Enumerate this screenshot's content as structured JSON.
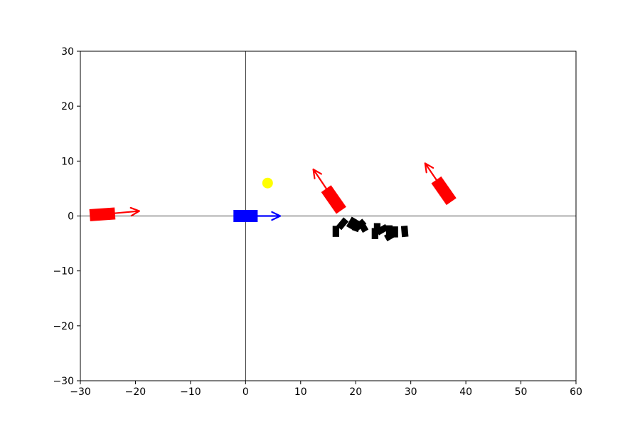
{
  "chart_data": {
    "type": "scatter",
    "title": "",
    "xlabel": "",
    "ylabel": "",
    "xlim": [
      -30,
      60
    ],
    "ylim": [
      -30,
      30
    ],
    "xticks": [
      -30,
      -20,
      -10,
      0,
      10,
      20,
      30,
      40,
      50,
      60
    ],
    "yticks": [
      -30,
      -20,
      -10,
      0,
      10,
      20,
      30
    ],
    "xtick_labels": [
      "−30",
      "−20",
      "−10",
      "0",
      "10",
      "20",
      "30",
      "40",
      "50",
      "60"
    ],
    "ytick_labels": [
      "−30",
      "−20",
      "−10",
      "0",
      "10",
      "20",
      "30"
    ],
    "reference_lines": {
      "x": 0,
      "y": 0
    },
    "grid": false,
    "own_vessel": {
      "x": 0,
      "y": 0,
      "heading_deg": 0,
      "length": 4.4,
      "width": 2.2,
      "arrow_end": [
        6.3,
        0
      ],
      "color": "#0000ff"
    },
    "target_vessels": [
      {
        "x": -26,
        "y": 0.3,
        "heading_deg": 4,
        "length": 4.6,
        "width": 2.2,
        "arrow_end": [
          -19.3,
          0.9
        ],
        "color": "#ff0000"
      },
      {
        "x": 16,
        "y": 3,
        "heading_deg": 125,
        "length": 4.8,
        "width": 2.2,
        "arrow_end": [
          12.3,
          8.5
        ],
        "color": "#ff0000"
      },
      {
        "x": 36,
        "y": 4.6,
        "heading_deg": 125,
        "length": 4.8,
        "width": 2.2,
        "arrow_end": [
          32.6,
          9.6
        ],
        "color": "#ff0000"
      }
    ],
    "waypoint": {
      "x": 4,
      "y": 6,
      "color": "#ffff00"
    },
    "obstacles": {
      "color": "#000000",
      "items": [
        {
          "x": 16.4,
          "y": -2.8,
          "heading_deg": 90
        },
        {
          "x": 17.6,
          "y": -1.4,
          "heading_deg": 50
        },
        {
          "x": 19.3,
          "y": -1.3,
          "heading_deg": 60
        },
        {
          "x": 20.2,
          "y": -1.8,
          "heading_deg": 70
        },
        {
          "x": 20.8,
          "y": -1.6,
          "heading_deg": 40
        },
        {
          "x": 21.3,
          "y": -1.9,
          "heading_deg": 120
        },
        {
          "x": 23.5,
          "y": -3.2,
          "heading_deg": 90
        },
        {
          "x": 23.9,
          "y": -2.3,
          "heading_deg": 90
        },
        {
          "x": 24.8,
          "y": -2.5,
          "heading_deg": 30
        },
        {
          "x": 26.1,
          "y": -2.7,
          "heading_deg": 90
        },
        {
          "x": 26.3,
          "y": -3.6,
          "heading_deg": 30
        },
        {
          "x": 27.1,
          "y": -2.9,
          "heading_deg": 90
        },
        {
          "x": 28.9,
          "y": -2.8,
          "heading_deg": 95
        }
      ]
    }
  }
}
